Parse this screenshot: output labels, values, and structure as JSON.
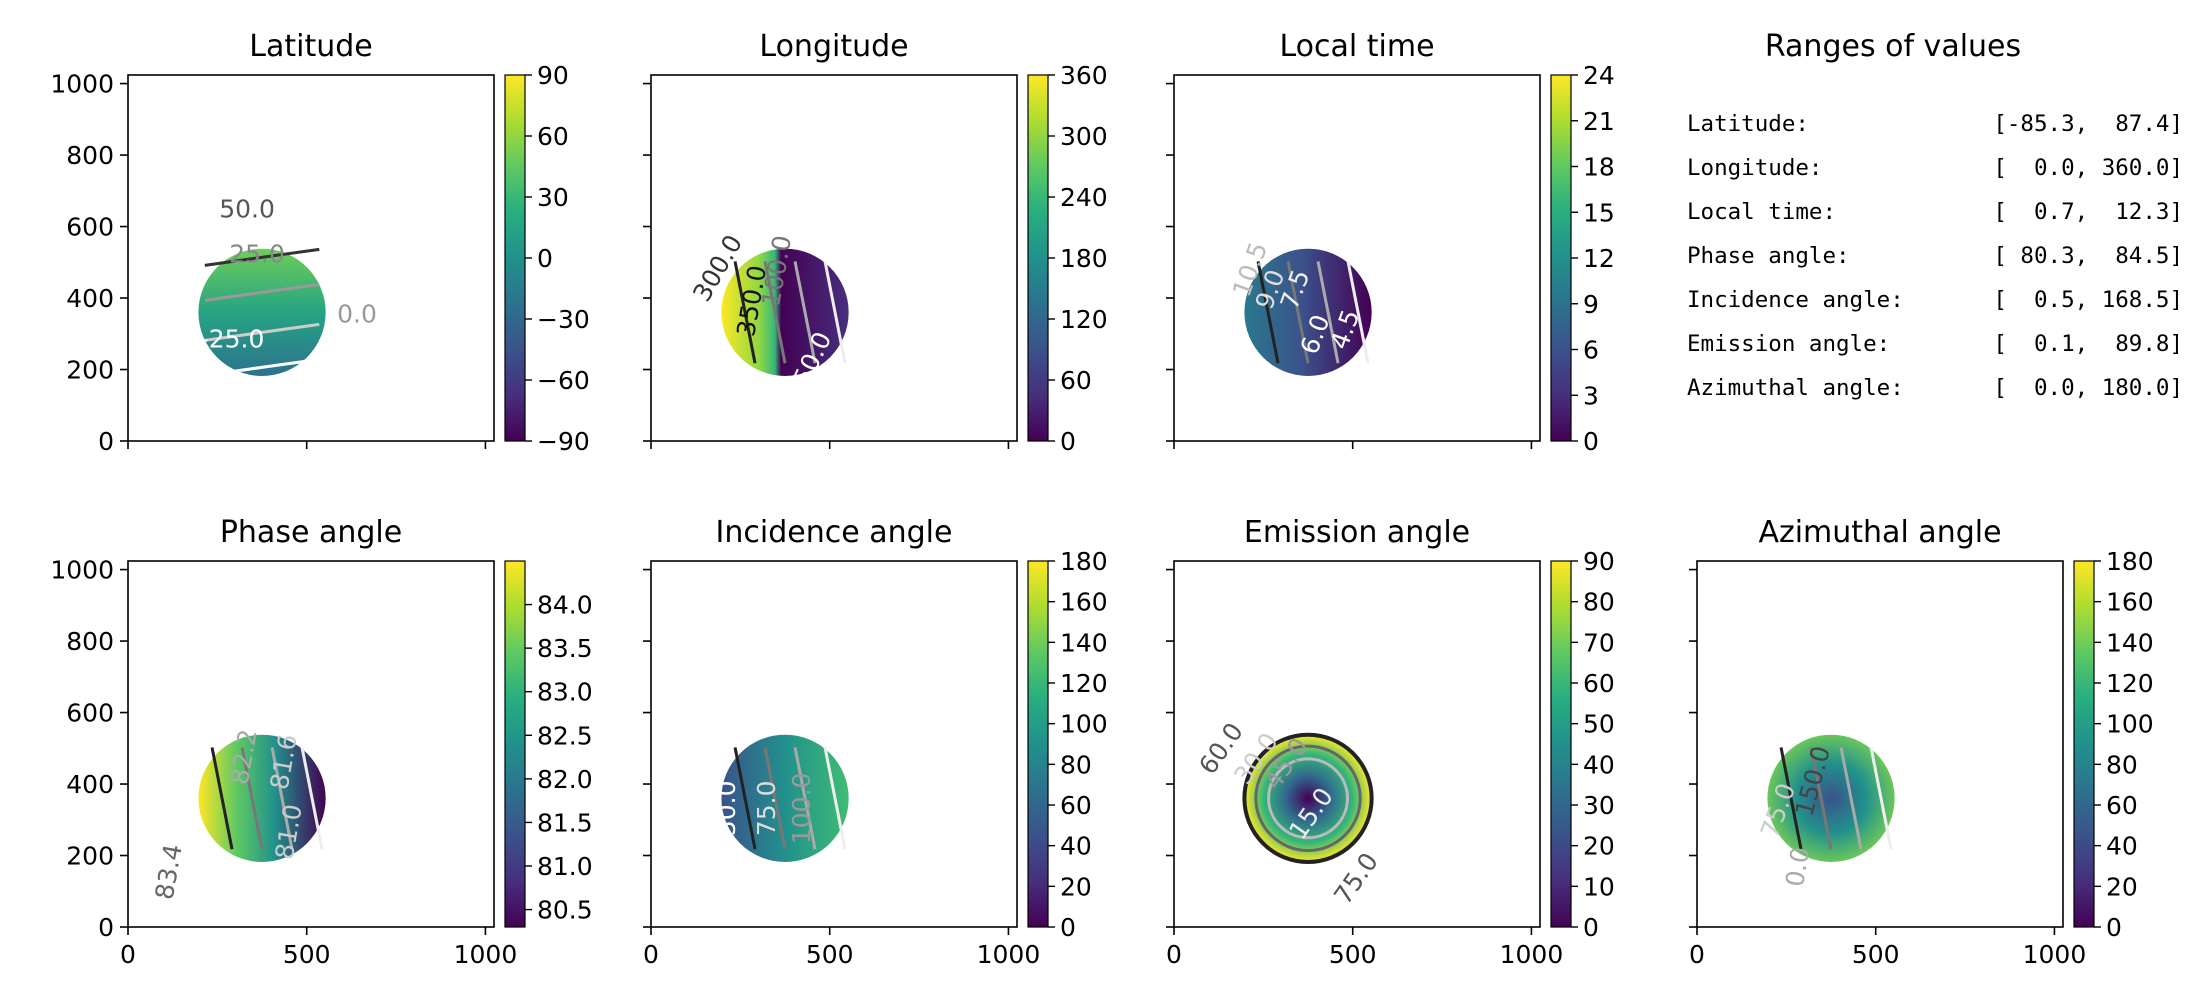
{
  "figure": {
    "panels": [
      {
        "title": "Latitude",
        "cbar_ticks": [
          "90",
          "60",
          "30",
          "0",
          "−30",
          "−60",
          "−90"
        ],
        "contour_labels": [
          "50.0",
          "25.0",
          "-25.0",
          "0.0"
        ]
      },
      {
        "title": "Longitude",
        "cbar_ticks": [
          "360",
          "300",
          "240",
          "180",
          "120",
          "60",
          "0"
        ],
        "contour_labels": [
          "300.0",
          "350.0",
          "100.0",
          "50.0"
        ]
      },
      {
        "title": "Local time",
        "cbar_ticks": [
          "24",
          "21",
          "18",
          "15",
          "12",
          "9",
          "6",
          "3",
          "0"
        ],
        "contour_labels": [
          "10.5",
          "9.0",
          "7.5",
          "6.0",
          "4.5"
        ]
      },
      {
        "title": "Phase angle",
        "cbar_ticks": [
          "84.0",
          "83.5",
          "83.0",
          "82.5",
          "82.0",
          "81.5",
          "81.0",
          "80.5"
        ],
        "contour_labels": [
          "82.2",
          "81.6",
          "81.0",
          "83.4"
        ]
      },
      {
        "title": "Incidence angle",
        "cbar_ticks": [
          "180",
          "160",
          "140",
          "120",
          "100",
          "80",
          "60",
          "40",
          "20",
          "0"
        ],
        "contour_labels": [
          "50.0",
          "75.0",
          "100.0"
        ]
      },
      {
        "title": "Emission angle",
        "cbar_ticks": [
          "90",
          "80",
          "70",
          "60",
          "50",
          "40",
          "30",
          "20",
          "10",
          "0"
        ],
        "contour_labels": [
          "60.0",
          "30.0",
          "45.0",
          "15.0",
          "75.0"
        ]
      },
      {
        "title": "Azimuthal angle",
        "cbar_ticks": [
          "180",
          "160",
          "140",
          "120",
          "100",
          "80",
          "60",
          "40",
          "20",
          "0"
        ],
        "contour_labels": [
          "75.0",
          "150.0",
          "0.0"
        ]
      }
    ],
    "y_ticks": [
      "1000",
      "800",
      "600",
      "400",
      "200",
      "0"
    ],
    "x_ticks": [
      "0",
      "500",
      "1000"
    ],
    "ranges": {
      "title": "Ranges of values",
      "rows": [
        {
          "name": "Latitude:",
          "range": "[-85.3,  87.4]"
        },
        {
          "name": "Longitude:",
          "range": "[  0.0, 360.0]"
        },
        {
          "name": "Local time:",
          "range": "[  0.7,  12.3]"
        },
        {
          "name": "Phase angle:",
          "range": "[ 80.3,  84.5]"
        },
        {
          "name": "Incidence angle:",
          "range": "[  0.5, 168.5]"
        },
        {
          "name": "Emission angle:",
          "range": "[  0.1,  89.8]"
        },
        {
          "name": "Azimuthal angle:",
          "range": "[  0.0, 180.0]"
        }
      ]
    }
  },
  "chart_data": [
    {
      "type": "heatmap",
      "title": "Latitude",
      "xlim": [
        0,
        1024
      ],
      "ylim": [
        0,
        1024
      ],
      "colormap": "viridis",
      "clim": [
        -90,
        90
      ]
    },
    {
      "type": "heatmap",
      "title": "Longitude",
      "xlim": [
        0,
        1024
      ],
      "ylim": [
        0,
        1024
      ],
      "colormap": "viridis",
      "clim": [
        0,
        360
      ]
    },
    {
      "type": "heatmap",
      "title": "Local time",
      "xlim": [
        0,
        1024
      ],
      "ylim": [
        0,
        1024
      ],
      "colormap": "viridis",
      "clim": [
        0,
        24
      ]
    },
    {
      "type": "heatmap",
      "title": "Phase angle",
      "xlim": [
        0,
        1024
      ],
      "ylim": [
        0,
        1024
      ],
      "colormap": "viridis",
      "clim": [
        80.3,
        84.5
      ]
    },
    {
      "type": "heatmap",
      "title": "Incidence angle",
      "xlim": [
        0,
        1024
      ],
      "ylim": [
        0,
        1024
      ],
      "colormap": "viridis",
      "clim": [
        0,
        180
      ]
    },
    {
      "type": "heatmap",
      "title": "Emission angle",
      "xlim": [
        0,
        1024
      ],
      "ylim": [
        0,
        1024
      ],
      "colormap": "viridis",
      "clim": [
        0,
        90
      ]
    },
    {
      "type": "heatmap",
      "title": "Azimuthal angle",
      "xlim": [
        0,
        1024
      ],
      "ylim": [
        0,
        1024
      ],
      "colormap": "viridis",
      "clim": [
        0,
        180
      ]
    }
  ]
}
